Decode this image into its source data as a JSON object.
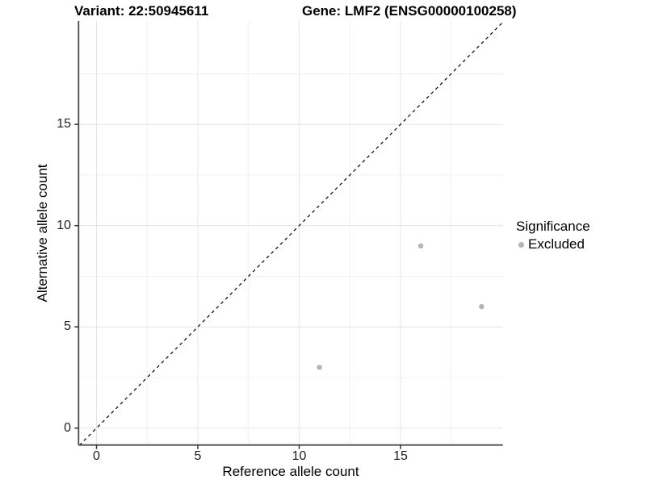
{
  "titles": {
    "variant": "Variant: 22:50945611",
    "gene": "Gene: LMF2 (ENSG00000100258)"
  },
  "chart_data": {
    "type": "scatter",
    "title": "Variant: 22:50945611 — Gene: LMF2 (ENSG00000100258)",
    "xlabel": "Reference allele count",
    "ylabel": "Alternative allele count",
    "xlim": [
      -0.9,
      20.1
    ],
    "ylim": [
      -0.9,
      20.1
    ],
    "x_ticks": [
      0,
      5,
      10,
      15
    ],
    "y_ticks": [
      0,
      5,
      10,
      15
    ],
    "x_minor_ticks": [
      2.5,
      7.5,
      12.5,
      17.5
    ],
    "y_minor_ticks": [
      2.5,
      7.5,
      12.5,
      17.5
    ],
    "grid": true,
    "points": [
      {
        "x": 11,
        "y": 3,
        "significance": "Excluded"
      },
      {
        "x": 16,
        "y": 9,
        "significance": "Excluded"
      },
      {
        "x": 19,
        "y": 6,
        "significance": "Excluded"
      }
    ],
    "identity_line": {
      "style": "dashed",
      "slope": 1,
      "intercept": 0,
      "from": [
        -0.85,
        -0.85
      ],
      "to": [
        20.05,
        20.05
      ]
    },
    "legend": {
      "position": "right",
      "title": "Significance",
      "items": [
        {
          "label": "Excluded",
          "color": "#b4b4b4"
        }
      ]
    }
  },
  "colors": {
    "point": "#b4b4b4",
    "grid_major": "#e4e4e4",
    "grid_minor": "#f1f1f1",
    "axis_line": "#4b4b4b",
    "tick_mark": "#333333",
    "identity_line": "#000000"
  }
}
